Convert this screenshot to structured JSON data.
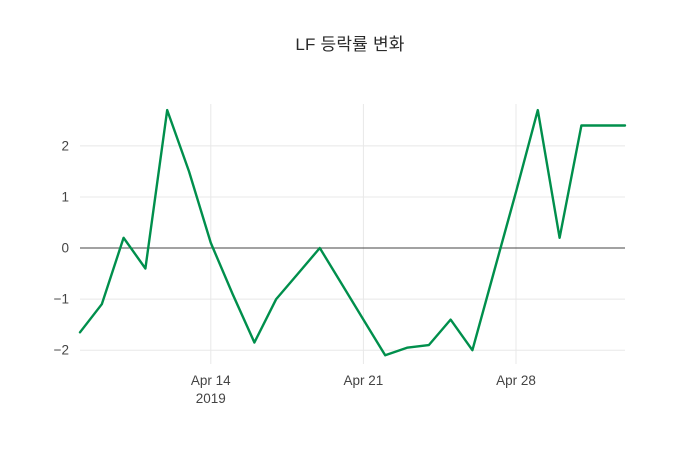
{
  "figure": {
    "title": "LF 등락률 변화"
  },
  "colors": {
    "line": "#008f4c",
    "zeroline": "#444444",
    "grid": "#e8e8e8",
    "text": "#444444",
    "background": "#ffffff"
  },
  "chart_data": {
    "type": "line",
    "title": "LF 등락률 변화",
    "xlabel": "",
    "ylabel": "",
    "legend": false,
    "grid": true,
    "ylim": [
      -2.27,
      2.82
    ],
    "x": [
      "2019-04-08",
      "2019-04-09",
      "2019-04-10",
      "2019-04-11",
      "2019-04-12",
      "2019-04-13",
      "2019-04-14",
      "2019-04-15",
      "2019-04-16",
      "2019-04-17",
      "2019-04-18",
      "2019-04-19",
      "2019-04-20",
      "2019-04-21",
      "2019-04-22",
      "2019-04-23",
      "2019-04-24",
      "2019-04-25",
      "2019-04-26",
      "2019-04-27",
      "2019-04-28",
      "2019-04-29",
      "2019-04-30",
      "2019-05-01",
      "2019-05-02",
      "2019-05-03"
    ],
    "values": [
      -1.65,
      -1.1,
      0.2,
      -0.4,
      2.7,
      1.5,
      0.1,
      -0.9,
      -1.85,
      -1.0,
      -0.5,
      0.0,
      -0.7,
      -1.4,
      -2.1,
      -1.95,
      -1.9,
      -1.4,
      -2.0,
      -0.45,
      1.1,
      2.7,
      0.2,
      2.4,
      2.4,
      2.4
    ],
    "x_ticks": [
      {
        "index": 6,
        "label": "Apr 14",
        "sublabel": "2019"
      },
      {
        "index": 13,
        "label": "Apr 21",
        "sublabel": ""
      },
      {
        "index": 20,
        "label": "Apr 28",
        "sublabel": ""
      }
    ],
    "y_ticks": [
      {
        "value": 2,
        "label": "2"
      },
      {
        "value": 1,
        "label": "1"
      },
      {
        "value": 0,
        "label": "0"
      },
      {
        "value": -1,
        "label": "−1"
      },
      {
        "value": -2,
        "label": "−2"
      }
    ]
  }
}
